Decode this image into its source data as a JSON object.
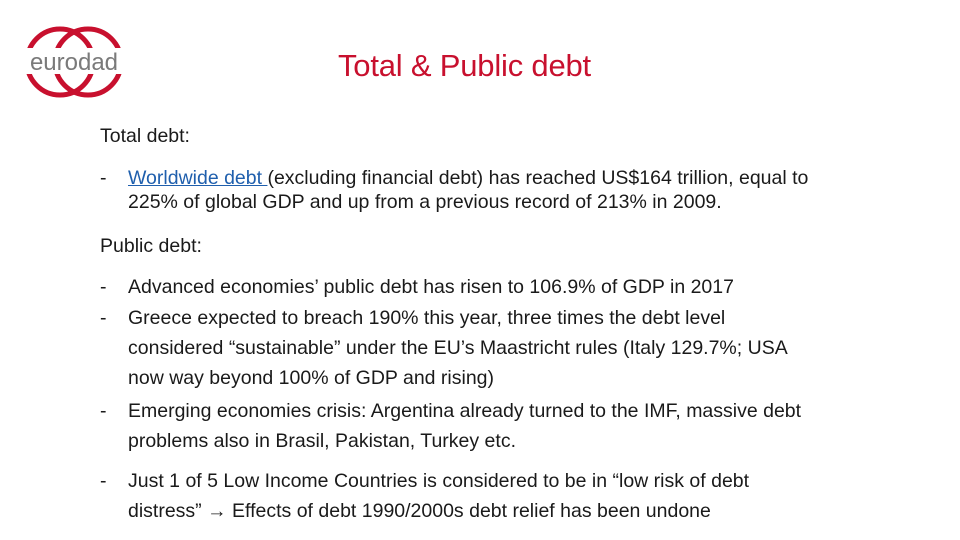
{
  "logo": {
    "text": "eurodad",
    "color": "#c8102e"
  },
  "title": "Total & Public debt",
  "sections": {
    "total_heading": "Total debt:",
    "total_bullet": {
      "dash": "-",
      "link_text": "Worldwide debt ",
      "line1_rest": "(excluding financial debt) has reached US$164 trillion, equal to",
      "line2": "225% of global GDP and up from a previous record of 213% in 2009."
    },
    "public_heading": "Public debt:",
    "public_bullets": [
      {
        "dash": "-",
        "lines": [
          "Advanced economies’ public debt has risen to 106.9% of GDP in 2017"
        ]
      },
      {
        "dash": "-",
        "lines": [
          "Greece expected to breach 190% this year, three times the debt level",
          "considered “sustainable” under the EU’s Maastricht rules (Italy 129.7%; USA",
          "now way beyond 100% of GDP and rising)"
        ]
      },
      {
        "dash": "-",
        "lines": [
          "Emerging economies crisis: Argentina already turned to the IMF, massive debt",
          "problems also in Brasil, Pakistan, Turkey etc."
        ]
      }
    ],
    "lic_bullet": {
      "dash": "-",
      "line1": "Just 1 of 5 Low Income Countries is considered to be in “low risk of debt",
      "line2_a": "distress” ",
      "arrow": "→",
      "line2_b": " Effects of debt 1990/2000s debt relief has been undone"
    }
  }
}
